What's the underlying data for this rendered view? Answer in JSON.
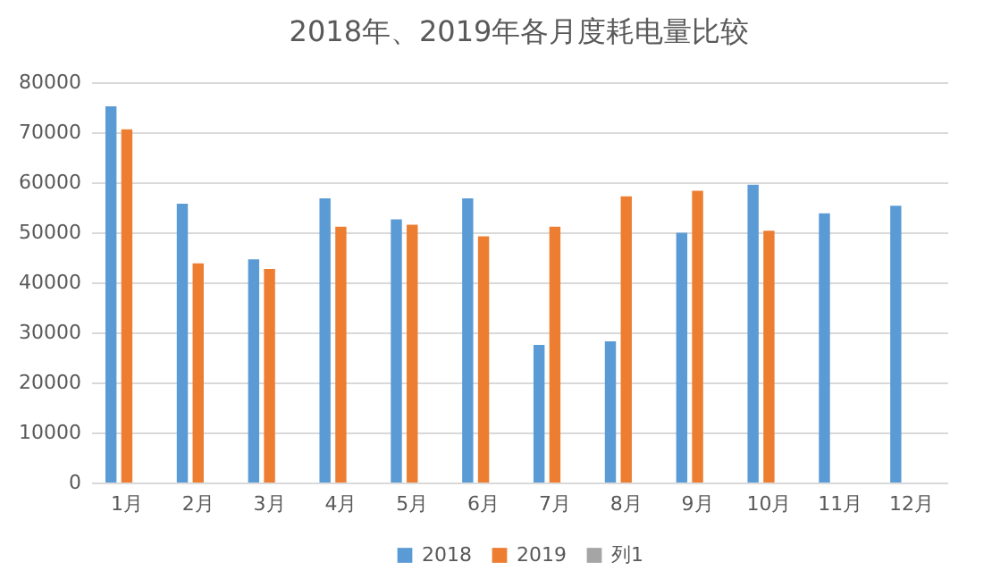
{
  "chart_data": {
    "type": "bar",
    "title": "2018年、2019年各月度耗电量比较",
    "categories": [
      "1月",
      "2月",
      "3月",
      "4月",
      "5月",
      "6月",
      "7月",
      "8月",
      "9月",
      "10月",
      "11月",
      "12月"
    ],
    "series": [
      {
        "name": "2018",
        "color": "#5b9bd5",
        "values": [
          75200,
          55700,
          44600,
          56800,
          52600,
          56800,
          27500,
          28200,
          49900,
          59500,
          53800,
          55300
        ]
      },
      {
        "name": "2019",
        "color": "#ed7d31",
        "values": [
          70600,
          43800,
          42700,
          51100,
          51500,
          49200,
          51100,
          57200,
          58300,
          50300,
          null,
          null
        ]
      },
      {
        "name": "列1",
        "color": "#a5a5a5",
        "values": [
          null,
          null,
          null,
          null,
          null,
          null,
          null,
          null,
          null,
          null,
          null,
          null
        ]
      }
    ],
    "ylim": [
      0,
      80000
    ],
    "yticks": [
      0,
      10000,
      20000,
      30000,
      40000,
      50000,
      60000,
      70000,
      80000
    ],
    "grid": "y",
    "legend": "bottom"
  }
}
